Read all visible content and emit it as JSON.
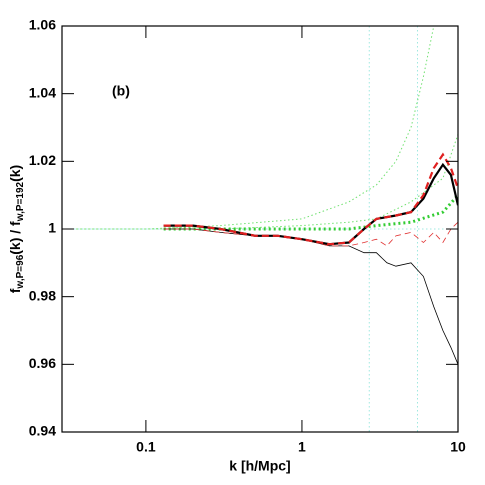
{
  "chart_data": {
    "type": "line",
    "annotation": "(b)",
    "xlabel": "k [h/Mpc]",
    "ylabel_parts": [
      "f",
      "w,P=96",
      "(k) / f",
      "w,P=192",
      "(k)"
    ],
    "xlog": true,
    "xlim": [
      0.029,
      10
    ],
    "xticks": [
      0.1,
      1,
      10
    ],
    "ylim": [
      0.94,
      1.06
    ],
    "yticks": [
      0.94,
      0.96,
      0.98,
      1,
      1.02,
      1.04,
      1.06
    ],
    "hline": 1,
    "vlines": [
      2.7,
      5.5
    ],
    "ref_color": "#9fe8e0",
    "series": [
      {
        "color": "#6ee06e",
        "width": 1,
        "dash": "1.5 2.5",
        "x": [
          0.03,
          0.1,
          0.3,
          1,
          2,
          3,
          4,
          5,
          6,
          7
        ],
        "values": [
          1.0,
          1.0,
          1.001,
          1.003,
          1.008,
          1.013,
          1.02,
          1.03,
          1.045,
          1.06
        ]
      },
      {
        "color": "#6ee06e",
        "width": 1,
        "dash": "1.5 2.5",
        "x": [
          0.03,
          0.3,
          1,
          2,
          3,
          5,
          8,
          10
        ],
        "values": [
          1.0,
          1.0,
          1.001,
          1.002,
          1.003,
          1.008,
          1.015,
          1.028
        ]
      },
      {
        "color": "#33cc33",
        "width": 3,
        "dash": "2 3",
        "x": [
          0.13,
          0.3,
          1,
          2,
          3,
          5,
          8,
          10
        ],
        "values": [
          1.0,
          1.0,
          1.0,
          1.0,
          1.001,
          1.002,
          1.005,
          1.01
        ]
      },
      {
        "color": "#000000",
        "width": 0.8,
        "dash": "",
        "x": [
          0.13,
          0.2,
          0.3,
          0.5,
          0.7,
          1,
          1.5,
          2,
          2.5,
          3,
          3.5,
          4,
          5,
          6,
          7,
          8,
          9,
          10
        ],
        "values": [
          1.0,
          1.0,
          0.999,
          0.998,
          0.998,
          0.997,
          0.995,
          0.995,
          0.993,
          0.993,
          0.99,
          0.989,
          0.99,
          0.986,
          0.977,
          0.97,
          0.965,
          0.96
        ]
      },
      {
        "color": "#e03030",
        "width": 0.8,
        "dash": "6 4",
        "x": [
          0.13,
          0.2,
          0.3,
          0.5,
          0.7,
          1,
          1.5,
          2,
          2.5,
          3,
          3.5,
          4,
          5,
          6,
          7,
          8,
          9,
          10
        ],
        "values": [
          1.0,
          1.0,
          0.999,
          0.998,
          0.998,
          0.997,
          0.995,
          0.995,
          0.996,
          0.997,
          0.995,
          0.998,
          0.999,
          0.996,
          0.999,
          0.996,
          1.0,
          1.002
        ]
      },
      {
        "color": "#000000",
        "width": 2.2,
        "dash": "",
        "x": [
          0.13,
          0.2,
          0.3,
          0.5,
          0.7,
          1,
          1.5,
          2,
          2.5,
          3,
          4,
          5,
          6,
          7,
          8,
          9,
          10
        ],
        "values": [
          1.001,
          1.001,
          1.0,
          0.998,
          0.998,
          0.997,
          0.9955,
          0.996,
          1.0,
          1.003,
          1.004,
          1.005,
          1.009,
          1.015,
          1.019,
          1.016,
          1.007
        ]
      },
      {
        "color": "#e02020",
        "width": 2.2,
        "dash": "7 4",
        "x": [
          0.13,
          0.2,
          0.3,
          0.5,
          0.7,
          1,
          1.5,
          2,
          2.5,
          3,
          4,
          5,
          6,
          7,
          8,
          9,
          10
        ],
        "values": [
          1.001,
          1.001,
          1.0,
          0.998,
          0.998,
          0.997,
          0.9955,
          0.996,
          1.0,
          1.003,
          1.004,
          1.005,
          1.01,
          1.018,
          1.022,
          1.018,
          1.012
        ]
      }
    ]
  }
}
